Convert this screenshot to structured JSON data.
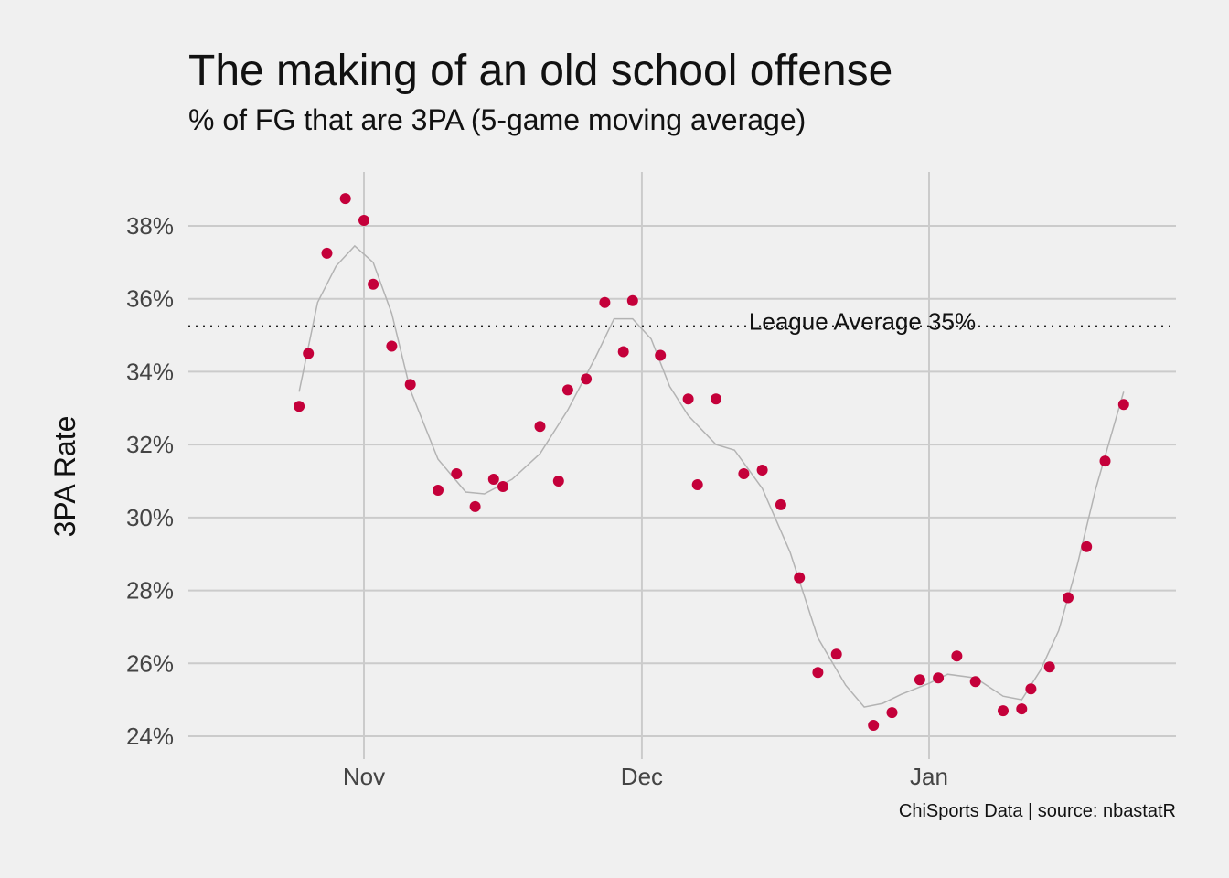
{
  "chart_data": {
    "type": "scatter",
    "title": "The making of an old school offense",
    "subtitle": "% of FG that are 3PA (5-game moving average)",
    "ylabel": "3PA Rate",
    "xlabel": "",
    "caption": "ChiSports Data   |   source: nbastatR",
    "x_ticks": [
      "Nov",
      "Dec",
      "Jan"
    ],
    "y_ticks": [
      "24%",
      "26%",
      "28%",
      "30%",
      "32%",
      "34%",
      "36%",
      "38%"
    ],
    "ylim": [
      0.238,
      0.395
    ],
    "grid": true,
    "reference_line": {
      "value": 0.3525,
      "label": "League Average 35%",
      "style": "dotted"
    },
    "series": [
      {
        "x": [
          "2018-10-25",
          "2018-10-26",
          "2018-10-28",
          "2018-10-30",
          "2018-11-01",
          "2018-11-02",
          "2018-11-04",
          "2018-11-06",
          "2018-11-09",
          "2018-11-11",
          "2018-11-13",
          "2018-11-15",
          "2018-11-16",
          "2018-11-20",
          "2018-11-22",
          "2018-11-23",
          "2018-11-25",
          "2018-11-27",
          "2018-11-29",
          "2018-11-30",
          "2018-12-03",
          "2018-12-06",
          "2018-12-07",
          "2018-12-09",
          "2018-12-12",
          "2018-12-14",
          "2018-12-16",
          "2018-12-18",
          "2018-12-20",
          "2018-12-22",
          "2018-12-26",
          "2018-12-28",
          "2018-12-31",
          "2019-01-02",
          "2019-01-04",
          "2019-01-06",
          "2019-01-09",
          "2019-01-11",
          "2019-01-12",
          "2019-01-14",
          "2019-01-16",
          "2019-01-18",
          "2019-01-20",
          "2019-01-22"
        ],
        "y": [
          0.3305,
          0.345,
          0.3725,
          0.3875,
          0.3815,
          0.364,
          0.347,
          0.3365,
          0.3075,
          0.312,
          0.303,
          0.3105,
          0.3085,
          0.325,
          0.31,
          0.335,
          0.338,
          0.359,
          0.3455,
          0.3595,
          0.3445,
          0.3325,
          0.309,
          0.3325,
          0.312,
          0.313,
          0.3035,
          0.2835,
          0.2575,
          0.2625,
          0.243,
          0.2465,
          0.2555,
          0.256,
          0.262,
          0.255,
          0.247,
          0.2475,
          0.253,
          0.259,
          0.278,
          0.292,
          0.3155,
          0.331
        ],
        "color": "#c4003a"
      }
    ],
    "trend": {
      "x": [
        "2018-10-25",
        "2018-10-27",
        "2018-10-29",
        "2018-10-31",
        "2018-11-02",
        "2018-11-04",
        "2018-11-06",
        "2018-11-09",
        "2018-11-12",
        "2018-11-14",
        "2018-11-17",
        "2018-11-20",
        "2018-11-23",
        "2018-11-26",
        "2018-11-28",
        "2018-11-30",
        "2018-12-02",
        "2018-12-04",
        "2018-12-06",
        "2018-12-09",
        "2018-12-11",
        "2018-12-14",
        "2018-12-17",
        "2018-12-20",
        "2018-12-23",
        "2018-12-25",
        "2018-12-27",
        "2018-12-29",
        "2019-01-01",
        "2019-01-03",
        "2019-01-06",
        "2019-01-09",
        "2019-01-11",
        "2019-01-13",
        "2019-01-15",
        "2019-01-17",
        "2019-01-19",
        "2019-01-22"
      ],
      "y": [
        0.3345,
        0.359,
        0.369,
        0.3745,
        0.37,
        0.356,
        0.335,
        0.316,
        0.307,
        0.3065,
        0.3105,
        0.3175,
        0.3295,
        0.344,
        0.3545,
        0.3545,
        0.349,
        0.336,
        0.328,
        0.32,
        0.3185,
        0.308,
        0.2905,
        0.267,
        0.254,
        0.248,
        0.249,
        0.2515,
        0.2545,
        0.257,
        0.256,
        0.251,
        0.25,
        0.258,
        0.269,
        0.287,
        0.308,
        0.3345
      ],
      "color": "#b3b3b3"
    }
  }
}
